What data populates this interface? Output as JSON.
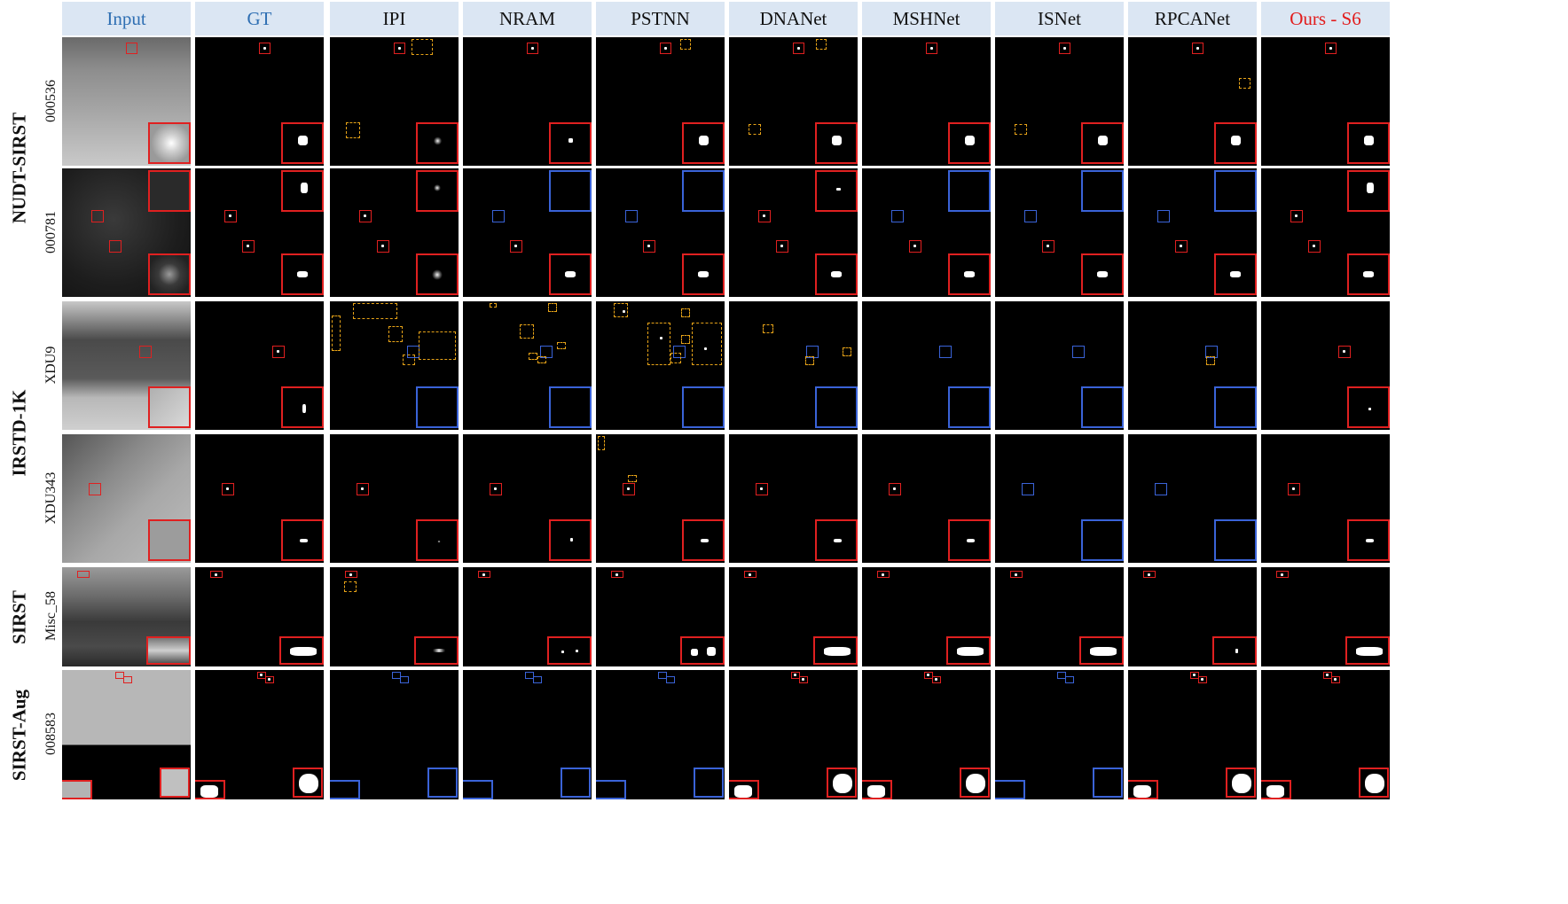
{
  "columns": [
    {
      "label": "Input",
      "color": "blue"
    },
    {
      "label": "GT",
      "color": "blue"
    },
    {
      "label": "IPI",
      "color": "black"
    },
    {
      "label": "NRAM",
      "color": "black"
    },
    {
      "label": "PSTNN",
      "color": "black"
    },
    {
      "label": "DNANet",
      "color": "black"
    },
    {
      "label": "MSHNet",
      "color": "black"
    },
    {
      "label": "ISNet",
      "color": "black"
    },
    {
      "label": "RPCANet",
      "color": "black"
    },
    {
      "label": "Ours - S6",
      "color": "red"
    }
  ],
  "datasets": [
    {
      "name": "NUDT-SIRST",
      "samples": [
        "000536",
        "000781"
      ]
    },
    {
      "name": "IRSTD-1K",
      "samples": [
        "XDU9",
        "XDU343"
      ]
    },
    {
      "name": "SIRST",
      "samples": [
        "Misc_58"
      ]
    },
    {
      "name": "SIRST-Aug",
      "samples": [
        "008583"
      ]
    }
  ],
  "legend_colors": {
    "correct_detection": "#e02020",
    "missed_detection": "#3a63d8",
    "false_alarm": "#e8a418",
    "header_background": "#dbe6f3"
  }
}
